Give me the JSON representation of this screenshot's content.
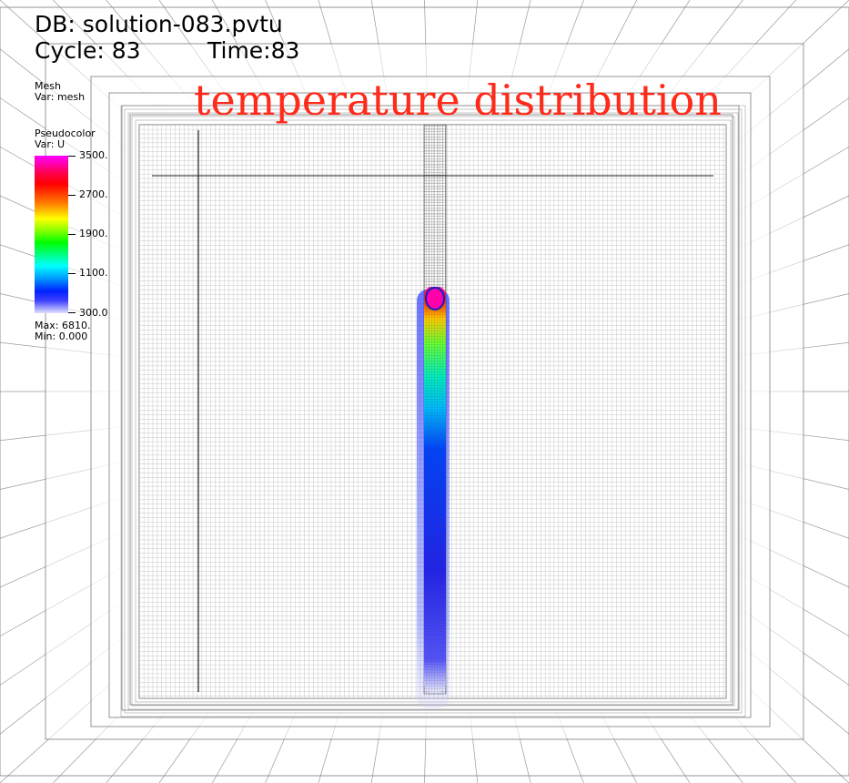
{
  "window": {
    "db_label": "DB: solution-083.pvtu",
    "cycle_label": "Cycle: 83",
    "time_label": "Time:83"
  },
  "plot_title": "temperature distribution",
  "mesh_legend": {
    "title": "Mesh",
    "var": "Var: mesh"
  },
  "pseudocolor_legend": {
    "title": "Pseudocolor",
    "var": "Var: U",
    "ticks": [
      "3500.",
      "2700.",
      "1900.",
      "1100.",
      "300.0"
    ],
    "max": "Max:  6810.",
    "min": "Min:  0.000",
    "colors": [
      "#ff00ff",
      "#ff0000",
      "#ffff00",
      "#00ff00",
      "#00ffff",
      "#0022ff",
      "#e0e0ff"
    ]
  }
}
